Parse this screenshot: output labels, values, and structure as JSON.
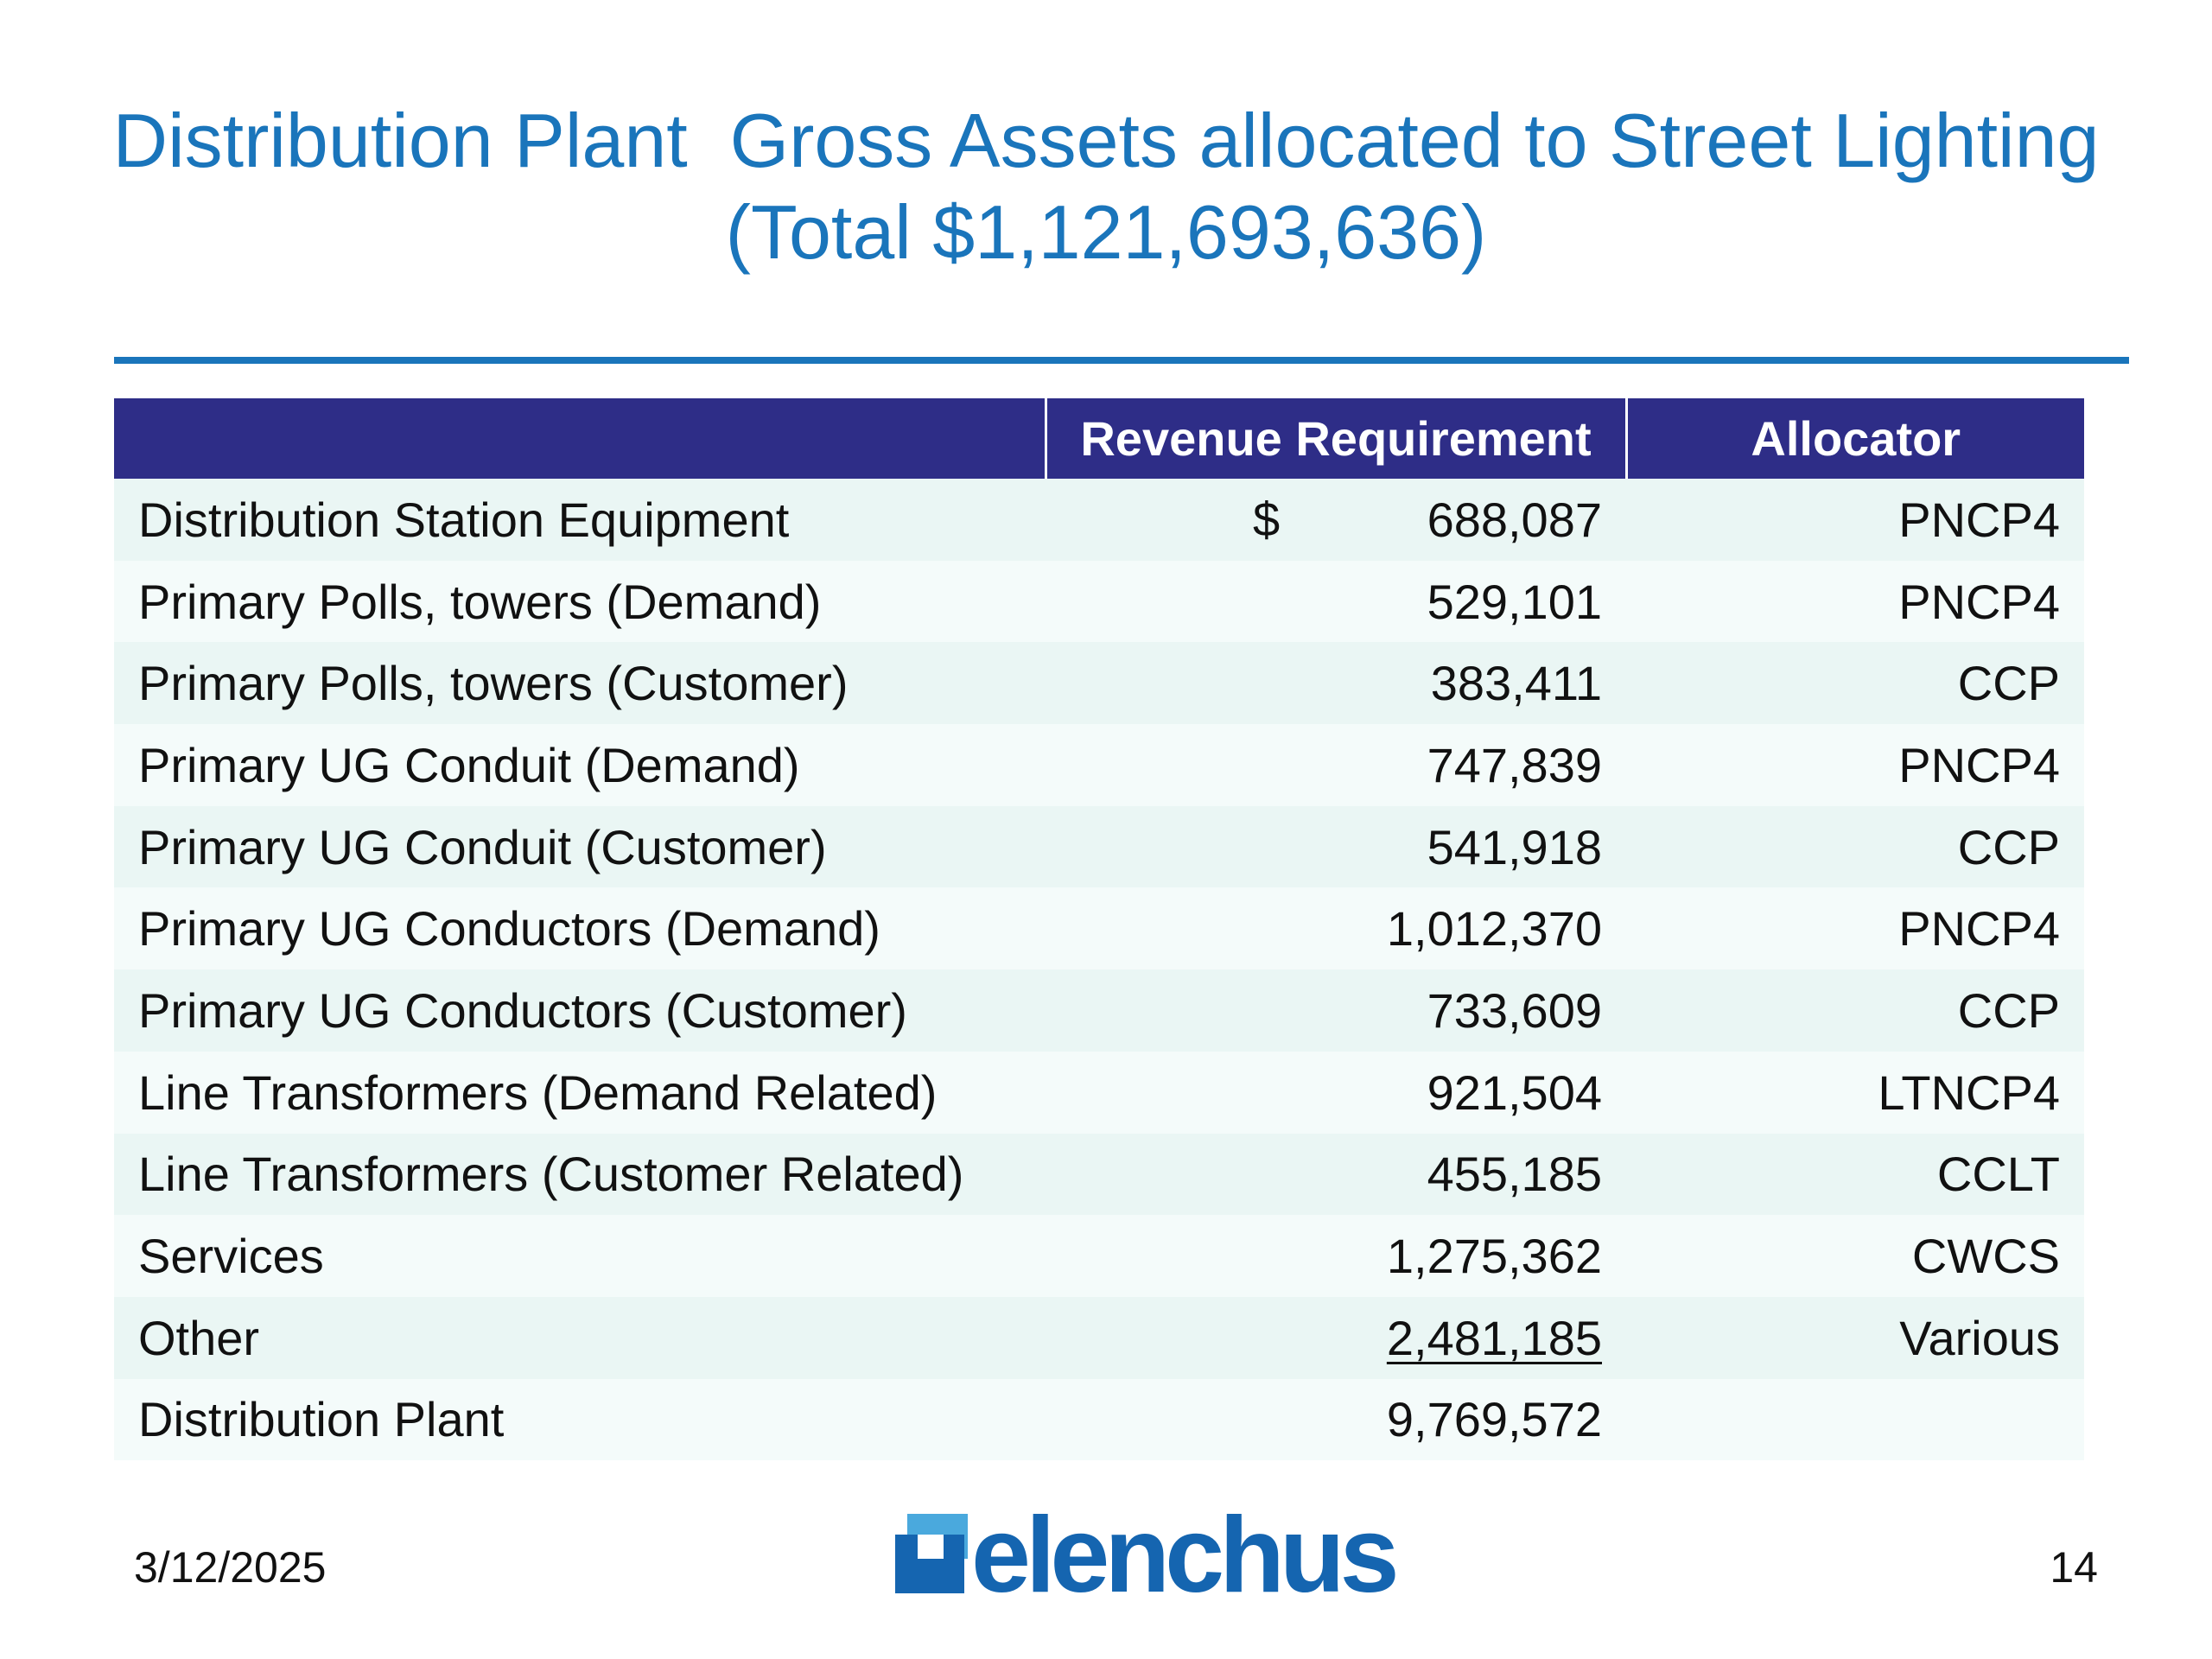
{
  "title": {
    "line1": "Distribution Plant  Gross Assets allocated to Street Lighting",
    "line2": "(Total $1,121,693,636)"
  },
  "table": {
    "headers": [
      "",
      "Revenue Requirement",
      "Allocator"
    ],
    "rows": [
      {
        "label": "Distribution Station Equipment",
        "currency": "$",
        "amount": "688,087",
        "allocator": "PNCP4"
      },
      {
        "label": "Primary Polls, towers (Demand)",
        "currency": "",
        "amount": "529,101",
        "allocator": "PNCP4"
      },
      {
        "label": "Primary Polls, towers (Customer)",
        "currency": "",
        "amount": "383,411",
        "allocator": "CCP"
      },
      {
        "label": "Primary UG Conduit (Demand)",
        "currency": "",
        "amount": "747,839",
        "allocator": "PNCP4"
      },
      {
        "label": "Primary UG Conduit (Customer)",
        "currency": "",
        "amount": "541,918",
        "allocator": "CCP"
      },
      {
        "label": "Primary UG Conductors (Demand)",
        "currency": "",
        "amount": "1,012,370",
        "allocator": "PNCP4"
      },
      {
        "label": "Primary UG Conductors (Customer)",
        "currency": "",
        "amount": "733,609",
        "allocator": "CCP"
      },
      {
        "label": "Line Transformers (Demand Related)",
        "currency": "",
        "amount": "921,504",
        "allocator": "LTNCP4"
      },
      {
        "label": "Line Transformers (Customer Related)",
        "currency": "",
        "amount": "455,185",
        "allocator": "CCLT"
      },
      {
        "label": "Services",
        "currency": "",
        "amount": "1,275,362",
        "allocator": "CWCS"
      },
      {
        "label": "Other",
        "currency": "",
        "amount": "2,481,185",
        "allocator": "Various"
      },
      {
        "label": "Distribution Plant",
        "currency": "",
        "amount": "9,769,572",
        "allocator": ""
      }
    ]
  },
  "footer": {
    "date": "3/12/2025",
    "page": "14",
    "logo_text": "elenchus"
  },
  "colors": {
    "title": "#1a75bb",
    "header_bg": "#2e2d87",
    "row_bg_odd": "#eaf6f4",
    "row_bg_even": "#f4fbfa",
    "logo_blue": "#1565b0",
    "logo_light": "#4aa9dd"
  }
}
